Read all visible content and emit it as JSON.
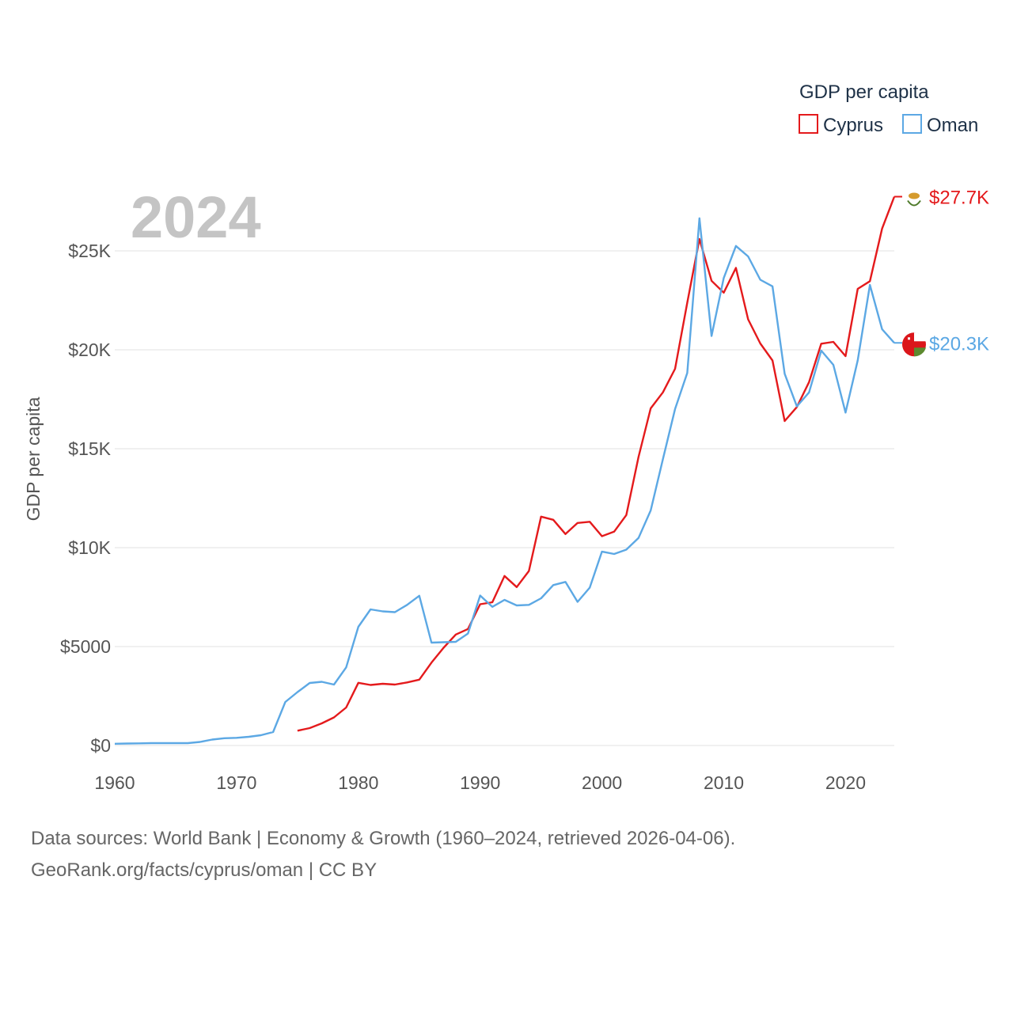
{
  "chart_data": {
    "type": "line",
    "title": "GDP per capita",
    "year_display": "2024",
    "ylabel": "GDP per capita",
    "xlabel": "",
    "xlim": [
      1960,
      2024
    ],
    "ylim": [
      0,
      27700
    ],
    "x_ticks": [
      {
        "value": 1960,
        "label": "1960"
      },
      {
        "value": 1970,
        "label": "1970"
      },
      {
        "value": 1980,
        "label": "1980"
      },
      {
        "value": 1990,
        "label": "1990"
      },
      {
        "value": 2000,
        "label": "2000"
      },
      {
        "value": 2010,
        "label": "2010"
      },
      {
        "value": 2020,
        "label": "2020"
      }
    ],
    "y_ticks": [
      {
        "value": 0,
        "label": "$0"
      },
      {
        "value": 5000,
        "label": "$5000"
      },
      {
        "value": 10000,
        "label": "$10K"
      },
      {
        "value": 15000,
        "label": "$15K"
      },
      {
        "value": 20000,
        "label": "$20K"
      },
      {
        "value": 25000,
        "label": "$25K"
      }
    ],
    "grid": true,
    "legend_position": "top-right",
    "series": [
      {
        "name": "Cyprus",
        "color": "#e41a1c",
        "end_label": "$27.7K",
        "flag_icon": "cyprus-flag-icon",
        "x": [
          1975,
          1976,
          1977,
          1978,
          1979,
          1980,
          1981,
          1982,
          1983,
          1984,
          1985,
          1986,
          1987,
          1988,
          1989,
          1990,
          1991,
          1992,
          1993,
          1994,
          1995,
          1996,
          1997,
          1998,
          1999,
          2000,
          2001,
          2002,
          2003,
          2004,
          2005,
          2006,
          2007,
          2008,
          2009,
          2010,
          2011,
          2012,
          2013,
          2014,
          2015,
          2016,
          2017,
          2018,
          2019,
          2020,
          2021,
          2022,
          2023,
          2024
        ],
        "values": [
          750,
          880,
          1120,
          1420,
          1920,
          3170,
          3060,
          3120,
          3080,
          3190,
          3330,
          4190,
          4940,
          5610,
          5890,
          7140,
          7240,
          8570,
          8010,
          8820,
          11570,
          11410,
          10690,
          11250,
          11310,
          10580,
          10810,
          11650,
          14580,
          17040,
          17850,
          19040,
          22380,
          25600,
          23490,
          22890,
          24140,
          21540,
          20320,
          19460,
          16400,
          17110,
          18370,
          20310,
          20400,
          19680,
          23080,
          23470,
          26130,
          27740
        ]
      },
      {
        "name": "Oman",
        "color": "#5ca8e4",
        "end_label": "$20.3K",
        "flag_icon": "oman-flag-icon",
        "x": [
          1960,
          1961,
          1962,
          1963,
          1964,
          1965,
          1966,
          1967,
          1968,
          1969,
          1970,
          1971,
          1972,
          1973,
          1974,
          1975,
          1976,
          1977,
          1978,
          1979,
          1980,
          1981,
          1982,
          1983,
          1984,
          1985,
          1986,
          1987,
          1988,
          1989,
          1990,
          1991,
          1992,
          1993,
          1994,
          1995,
          1996,
          1997,
          1998,
          1999,
          2000,
          2001,
          2002,
          2003,
          2004,
          2005,
          2006,
          2007,
          2008,
          2009,
          2010,
          2011,
          2012,
          2013,
          2014,
          2015,
          2016,
          2017,
          2018,
          2019,
          2020,
          2021,
          2022,
          2023,
          2024
        ],
        "values": [
          90,
          100,
          110,
          120,
          120,
          120,
          120,
          180,
          300,
          370,
          390,
          440,
          520,
          680,
          2200,
          2700,
          3160,
          3220,
          3080,
          3950,
          6000,
          6880,
          6780,
          6740,
          7110,
          7570,
          5200,
          5220,
          5240,
          5660,
          7580,
          7010,
          7360,
          7080,
          7110,
          7440,
          8110,
          8270,
          7260,
          7980,
          9800,
          9680,
          9900,
          10490,
          11880,
          14470,
          17010,
          18830,
          26650,
          20700,
          23630,
          25250,
          24720,
          23540,
          23210,
          18790,
          17140,
          17850,
          19960,
          19240,
          16830,
          19470,
          23280,
          21040,
          20350
        ]
      }
    ]
  },
  "footer": {
    "sources_line": "Data sources: World Bank | Economy & Growth (1960–2024, retrieved 2026-04-06).",
    "credit_line": "GeoRank.org/facts/cyprus/oman | CC BY"
  }
}
